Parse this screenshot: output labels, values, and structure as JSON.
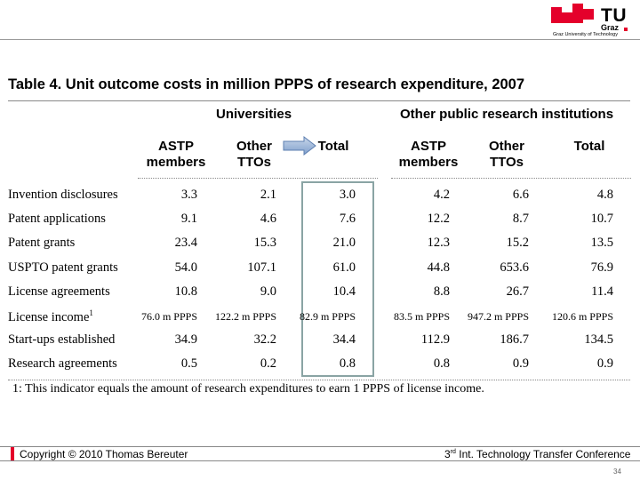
{
  "logo": {
    "tu": "TU",
    "graz": "Graz",
    "university": "Graz University of Technology",
    "accent": "#e4002b"
  },
  "table": {
    "title": "Table 4. Unit outcome costs in million PPPS of research expenditure, 2007",
    "groups": {
      "universities": "Universities",
      "other": "Other public research institutions"
    },
    "column_heads": {
      "u_astp": [
        "ASTP",
        "members"
      ],
      "u_other": [
        "Other",
        "TTOs"
      ],
      "u_total": "Total",
      "o_astp": [
        "ASTP",
        "members"
      ],
      "o_other": [
        "Other",
        "TTOs"
      ],
      "o_total": "Total"
    },
    "rows": [
      {
        "label": "Invention disclosures",
        "sup": "",
        "values": [
          "3.3",
          "2.1",
          "3.0",
          "4.2",
          "6.6",
          "4.8"
        ]
      },
      {
        "label": "Patent applications",
        "sup": "",
        "values": [
          "9.1",
          "4.6",
          "7.6",
          "12.2",
          "8.7",
          "10.7"
        ]
      },
      {
        "label": "Patent grants",
        "sup": "",
        "values": [
          "23.4",
          "15.3",
          "21.0",
          "12.3",
          "15.2",
          "13.5"
        ]
      },
      {
        "label": "USPTO patent grants",
        "sup": "",
        "values": [
          "54.0",
          "107.1",
          "61.0",
          "44.8",
          "653.6",
          "76.9"
        ]
      },
      {
        "label": "License agreements",
        "sup": "",
        "values": [
          "10.8",
          "9.0",
          "10.4",
          "8.8",
          "26.7",
          "11.4"
        ]
      },
      {
        "label": "License income",
        "sup": "1",
        "values": [
          "76.0 m PPPS",
          "122.2 m PPPS",
          "82.9 m PPPS",
          "83.5 m PPPS",
          "947.2 m PPPS",
          "120.6 m PPPS"
        ]
      },
      {
        "label": "Start-ups established",
        "sup": "",
        "values": [
          "34.9",
          "32.2",
          "34.4",
          "112.9",
          "186.7",
          "134.5"
        ]
      },
      {
        "label": "Research agreements",
        "sup": "",
        "values": [
          "0.5",
          "0.2",
          "0.8",
          "0.8",
          "0.9",
          "0.9"
        ]
      }
    ],
    "footnote": "1: This indicator equals the amount of research expenditures to earn 1 PPPS of license income."
  },
  "footer": {
    "copyright": "Copyright © 2010 Thomas Bereuter",
    "conf_num": "3",
    "conf_sup": "rd",
    "conf_text": " Int. Technology Transfer Conference",
    "page": "34"
  }
}
